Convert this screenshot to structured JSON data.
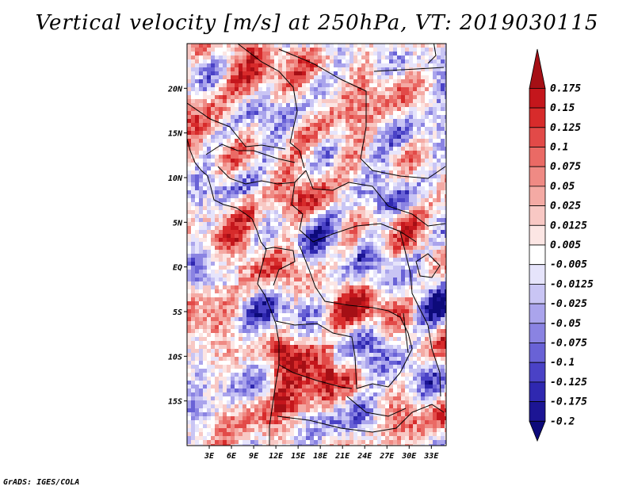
{
  "title": "Vertical velocity [m/s] at 250hPa, VT: 2019030115",
  "credit": "GrADS: IGES/COLA",
  "map": {
    "lon_range": [
      0,
      35
    ],
    "lat_range": [
      -20,
      25
    ],
    "lat_ticks": [
      {
        "lat": 20,
        "label": "20N"
      },
      {
        "lat": 15,
        "label": "15N"
      },
      {
        "lat": 10,
        "label": "10N"
      },
      {
        "lat": 5,
        "label": "5N"
      },
      {
        "lat": 0,
        "label": "EQ"
      },
      {
        "lat": -5,
        "label": "5S"
      },
      {
        "lat": -10,
        "label": "10S"
      },
      {
        "lat": -15,
        "label": "15S"
      }
    ],
    "lon_ticks": [
      {
        "lon": 3,
        "label": "3E"
      },
      {
        "lon": 6,
        "label": "6E"
      },
      {
        "lon": 9,
        "label": "9E"
      },
      {
        "lon": 12,
        "label": "12E"
      },
      {
        "lon": 15,
        "label": "15E"
      },
      {
        "lon": 18,
        "label": "18E"
      },
      {
        "lon": 21,
        "label": "21E"
      },
      {
        "lon": 24,
        "label": "24E"
      },
      {
        "lon": 27,
        "label": "27E"
      },
      {
        "lon": 30,
        "label": "30E"
      },
      {
        "lon": 33,
        "label": "33E"
      }
    ]
  },
  "colorbar": {
    "labels": [
      "0.175",
      "0.15",
      "0.125",
      "0.1",
      "0.075",
      "0.05",
      "0.025",
      "0.0125",
      "0.005",
      "-0.005",
      "-0.0125",
      "-0.025",
      "-0.05",
      "-0.075",
      "-0.1",
      "-0.125",
      "-0.175",
      "-0.2"
    ],
    "colors": [
      "#a50f15",
      "#c4161c",
      "#d72b2b",
      "#e24a48",
      "#ea6a65",
      "#ef8a84",
      "#f4aaa4",
      "#f8c8c4",
      "#fce6e4",
      "#ffffff",
      "#e6e4fb",
      "#c9c5f4",
      "#aaa4ec",
      "#8a83e2",
      "#6962d6",
      "#4a42c6",
      "#2f28b0",
      "#1c1594",
      "#0d0a7a"
    ]
  }
}
